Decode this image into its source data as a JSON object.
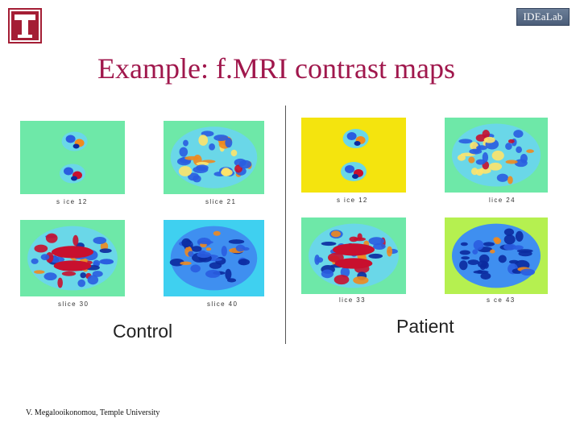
{
  "slide": {
    "title": "Example: f.MRI contrast maps",
    "lab_logo_text": "IDEaLab",
    "footer": "V. Megalooikonomou, Temple University"
  },
  "groups": {
    "control": "Control",
    "patient": "Patient"
  },
  "panels": [
    {
      "id": "control-slice-12",
      "label": "s ice 12",
      "background": "#6ee8a8",
      "pattern": "sparse"
    },
    {
      "id": "control-slice-21",
      "label": "slice 21",
      "background": "#6ee8a8",
      "pattern": "mixed"
    },
    {
      "id": "control-slice-30",
      "label": "slice 30",
      "background": "#6ee8a8",
      "pattern": "strong"
    },
    {
      "id": "control-slice-40",
      "label": "slice 40",
      "background": "#3fd0f0",
      "pattern": "cool"
    },
    {
      "id": "patient-slice-12",
      "label": "s ice 12",
      "background": "#f4e40e",
      "pattern": "sparse"
    },
    {
      "id": "patient-slice-24",
      "label": "lice 24",
      "background": "#6ee8a8",
      "pattern": "mixed"
    },
    {
      "id": "patient-slice-33",
      "label": "lice 33",
      "background": "#6ee8a8",
      "pattern": "strong"
    },
    {
      "id": "patient-slice-43",
      "label": "s ce 43",
      "background": "#b5f050",
      "pattern": "cool"
    }
  ],
  "colors": {
    "title": "#a0174c",
    "temple_red": "#a41e35",
    "map_hot": "#c8102e",
    "map_warm": "#f08a1e",
    "map_cool": "#2a5de0",
    "map_deep": "#0b2a9e",
    "map_mid": "#6ad7e8"
  },
  "icons": {
    "university_logo": "temple-t-icon",
    "lab_logo": "idealab-logo-icon"
  }
}
